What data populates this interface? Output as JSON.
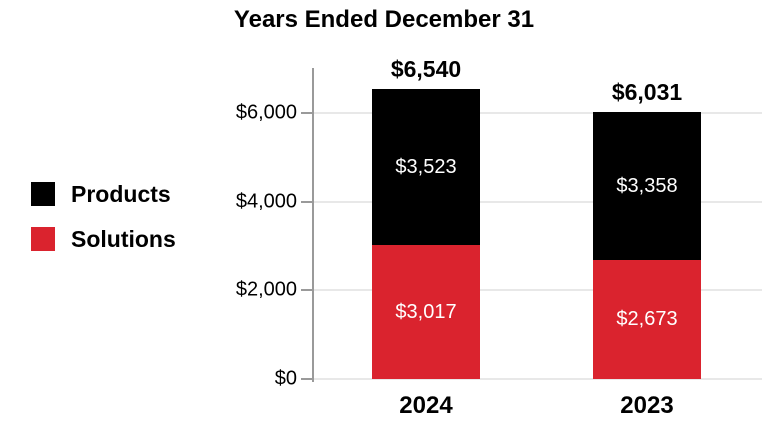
{
  "title": "Years Ended December 31",
  "colors": {
    "products": "#000000",
    "solutions": "#DA232E",
    "gridline": "#E8E8E8",
    "axis": "#9A9A9A"
  },
  "legend": [
    {
      "label": "Products",
      "color": "#000000"
    },
    {
      "label": "Solutions",
      "color": "#DA232E"
    }
  ],
  "chart_data": {
    "type": "bar",
    "stacked": true,
    "title": "Years Ended December 31",
    "categories": [
      "2024",
      "2023"
    ],
    "series": [
      {
        "name": "Solutions",
        "color": "#DA232E",
        "values": [
          3017,
          2673
        ],
        "labels": [
          "$3,017",
          "$2,673"
        ]
      },
      {
        "name": "Products",
        "color": "#000000",
        "values": [
          3523,
          3358
        ],
        "labels": [
          "$3,523",
          "$3,358"
        ]
      }
    ],
    "totals": [
      6540,
      6031
    ],
    "total_labels": [
      "$6,540",
      "$6,031"
    ],
    "y_axis": {
      "ticks": [
        0,
        2000,
        4000,
        6000
      ],
      "tick_labels": [
        "$0",
        "$2,000",
        "$4,000",
        "$6,000"
      ],
      "max": 6540,
      "prefix": "$"
    },
    "grid": true,
    "legend_position": "left"
  }
}
